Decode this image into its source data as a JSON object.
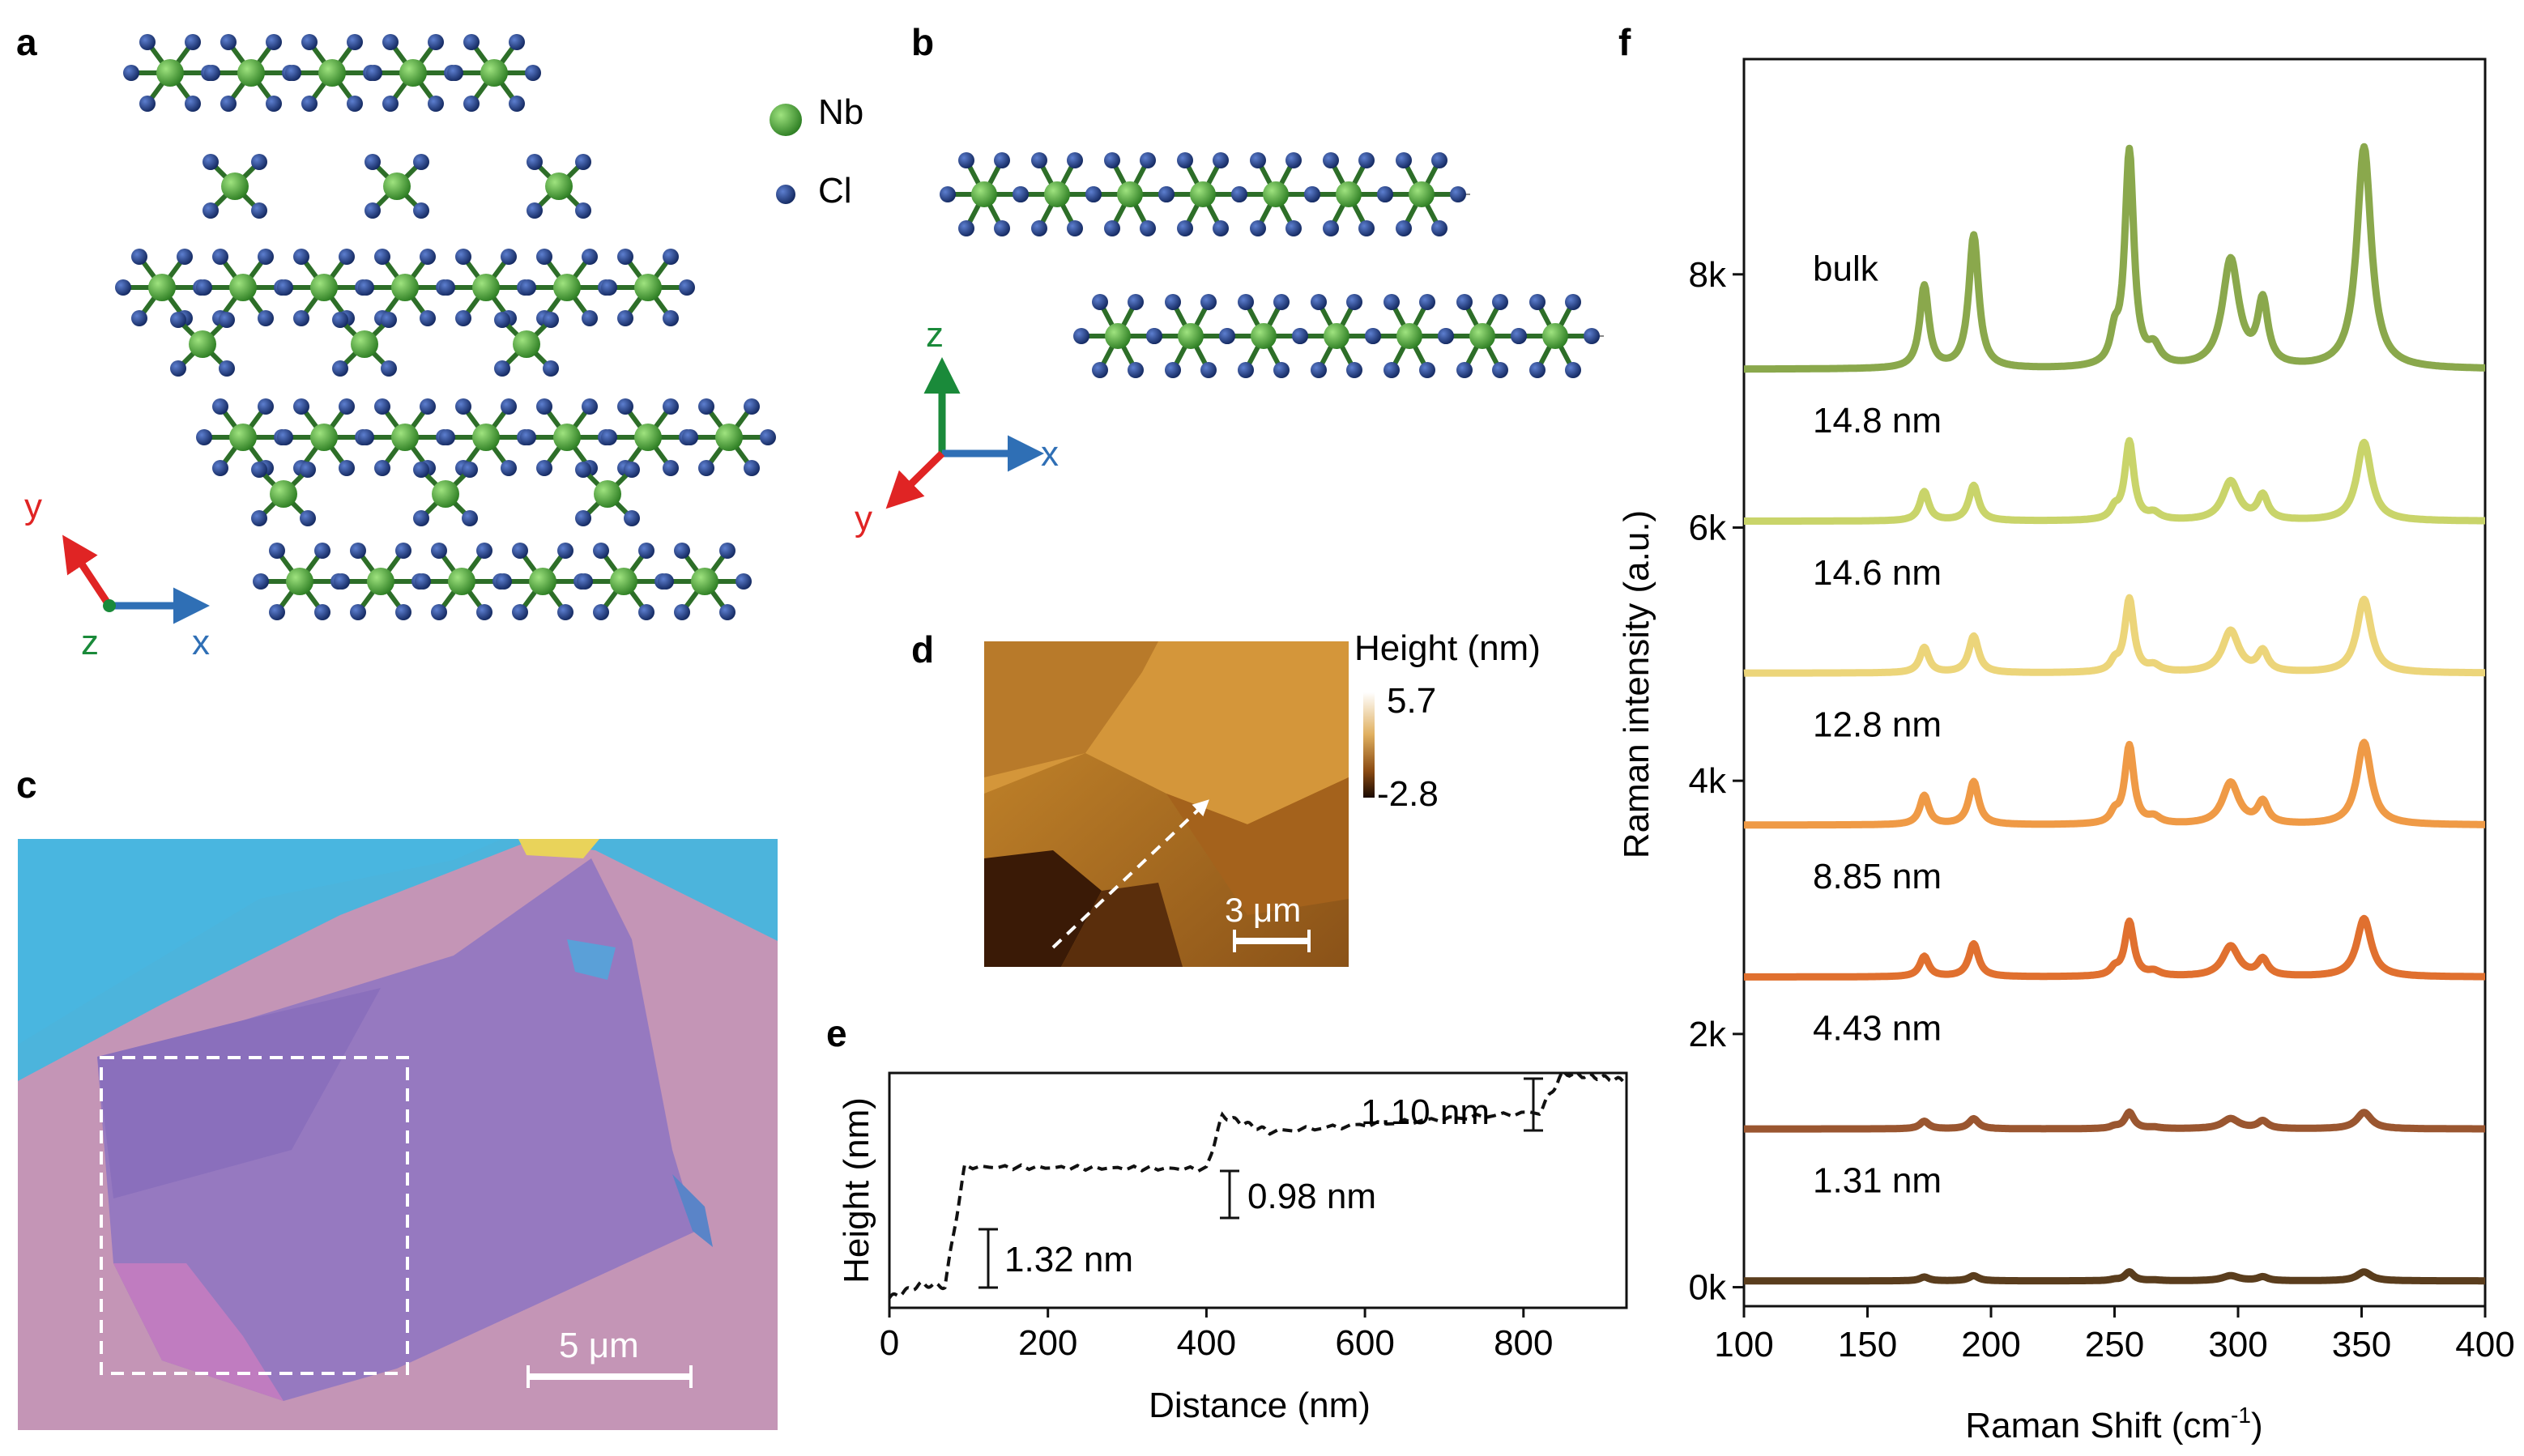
{
  "panels": {
    "a": "a",
    "b": "b",
    "c": "c",
    "d": "d",
    "e": "e",
    "f": "f"
  },
  "legend": {
    "nb": "Nb",
    "cl": "Cl"
  },
  "axes_a": {
    "y": "y",
    "z": "z",
    "x": "x"
  },
  "axes_b": {
    "z": "z",
    "x": "x",
    "y": "y"
  },
  "micrograph": {
    "scale_label": "5 μm"
  },
  "afm": {
    "colorbar_title": "Height (nm)",
    "max": "5.7",
    "min": "-2.8",
    "scale_label": "3 μm"
  },
  "profile": {
    "ylabel": "Height (nm)",
    "xlabel": "Distance (nm)",
    "xticks": [
      "0",
      "200",
      "400",
      "600",
      "800"
    ],
    "steps": [
      "1.32 nm",
      "0.98 nm",
      "1.10 nm"
    ]
  },
  "colors": {
    "nb": "#3d9a2e",
    "cl": "#1f3d8c",
    "axis_x": "#2f6fb5",
    "axis_y": "#e02424",
    "axis_z": "#1a8a3a"
  },
  "chart_data": {
    "type": "line",
    "xlabel": "Raman Shift (cm-1)",
    "xlabel_main": "Raman Shift (cm",
    "xlabel_sup": "-1",
    "xlabel_close": ")",
    "ylabel": "Raman intensity (a.u.)",
    "xlim": [
      100,
      400
    ],
    "ylim": [
      -150,
      9700
    ],
    "xticks": [
      "100",
      "150",
      "200",
      "250",
      "300",
      "350",
      "400"
    ],
    "yticks": [
      "0k",
      "2k",
      "4k",
      "6k",
      "8k"
    ],
    "peak_positions": [
      173,
      193,
      256,
      297,
      310,
      351
    ],
    "series": [
      {
        "name": "bulk",
        "offset": 7250,
        "amps": [
          650,
          1050,
          1700,
          850,
          500,
          1750
        ],
        "color": "#8aa84c"
      },
      {
        "name": "14.8 nm",
        "offset": 6050,
        "amps": [
          230,
          280,
          620,
          310,
          190,
          620
        ],
        "color": "#c9d46a"
      },
      {
        "name": "14.6 nm",
        "offset": 4850,
        "amps": [
          200,
          290,
          580,
          330,
          160,
          580
        ],
        "color": "#ecd57a"
      },
      {
        "name": "12.8 nm",
        "offset": 3650,
        "amps": [
          230,
          340,
          620,
          330,
          170,
          650
        ],
        "color": "#ef9a46"
      },
      {
        "name": "8.85 nm",
        "offset": 2450,
        "amps": [
          160,
          260,
          430,
          240,
          130,
          460
        ],
        "color": "#e0702f"
      },
      {
        "name": "4.43 nm",
        "offset": 1250,
        "amps": [
          60,
          80,
          130,
          80,
          60,
          130
        ],
        "color": "#9a5630"
      },
      {
        "name": "1.31 nm",
        "offset": 50,
        "amps": [
          30,
          40,
          70,
          40,
          30,
          70
        ],
        "color": "#5a3d1d"
      }
    ]
  },
  "profile_data": {
    "type": "line",
    "xlim": [
      0,
      930
    ],
    "ylim": [
      0,
      6.0
    ],
    "segments": [
      {
        "x": 0,
        "y": 0.25
      },
      {
        "x": 40,
        "y": 0.6
      },
      {
        "x": 70,
        "y": 0.55
      },
      {
        "x": 95,
        "y": 3.6
      },
      {
        "x": 400,
        "y": 3.55
      },
      {
        "x": 420,
        "y": 4.9
      },
      {
        "x": 480,
        "y": 4.5
      },
      {
        "x": 820,
        "y": 5.0
      },
      {
        "x": 850,
        "y": 6.0
      },
      {
        "x": 930,
        "y": 5.8
      }
    ]
  }
}
